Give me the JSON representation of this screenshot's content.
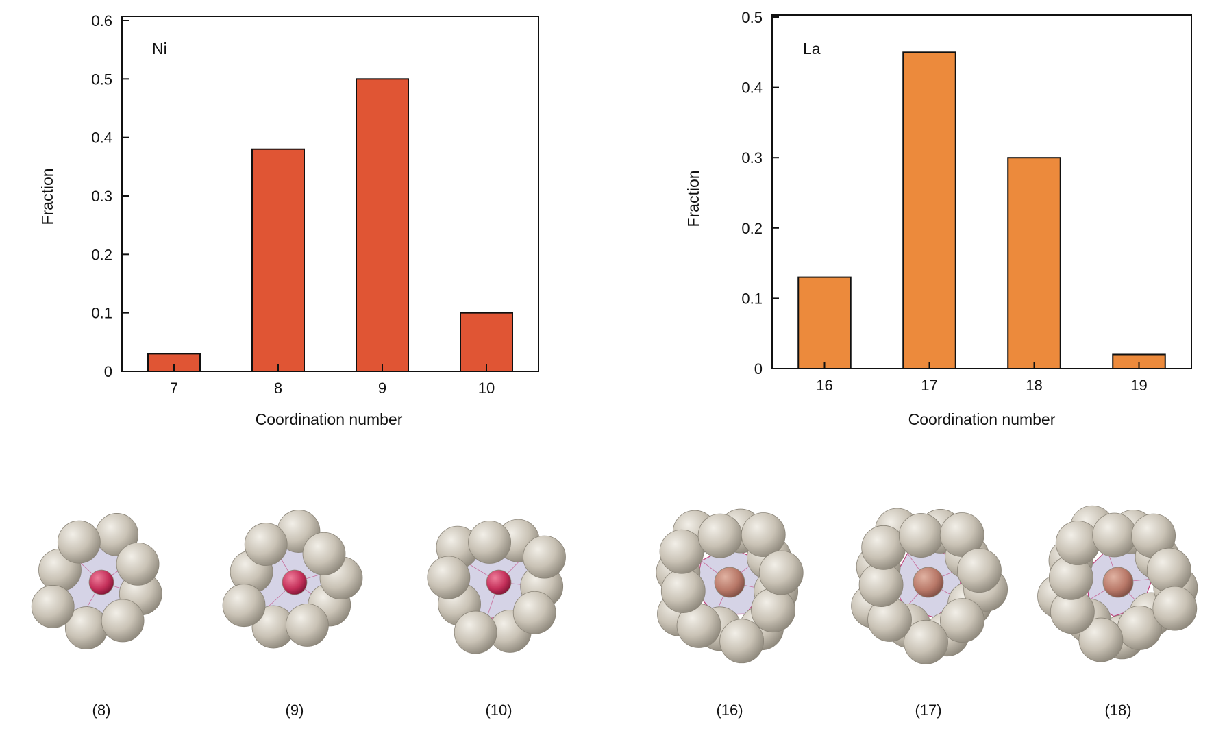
{
  "chart_data": [
    {
      "type": "bar",
      "panel_label": "Ni",
      "categories": [
        "7",
        "8",
        "9",
        "10"
      ],
      "values": [
        0.03,
        0.38,
        0.5,
        0.1
      ],
      "xlabel": "Coordination number",
      "ylabel": "Fraction",
      "ylim": [
        0,
        0.6
      ],
      "yticks": [
        "0",
        "0.1",
        "0.2",
        "0.3",
        "0.4",
        "0.5",
        "0.6"
      ],
      "grid": false,
      "bar_color": "#e05534"
    },
    {
      "type": "bar",
      "panel_label": "La",
      "categories": [
        "16",
        "17",
        "18",
        "19"
      ],
      "values": [
        0.13,
        0.45,
        0.3,
        0.02
      ],
      "xlabel": "Coordination number",
      "ylabel": "Fraction",
      "ylim": [
        0,
        0.5
      ],
      "yticks": [
        "0",
        "0.1",
        "0.2",
        "0.3",
        "0.4",
        "0.5"
      ],
      "grid": false,
      "bar_color": "#ec8a3c"
    }
  ],
  "clusters": {
    "captions": [
      "(8)",
      "(9)",
      "(10)",
      "(16)",
      "(17)",
      "(18)"
    ],
    "colors": {
      "neighbor": "#c9c2b5",
      "polyhedron_fill": "#b9b6d6",
      "polyhedron_edge": "#c0407a",
      "ni_center": "#c4305a",
      "la_center": "#b87868"
    }
  }
}
